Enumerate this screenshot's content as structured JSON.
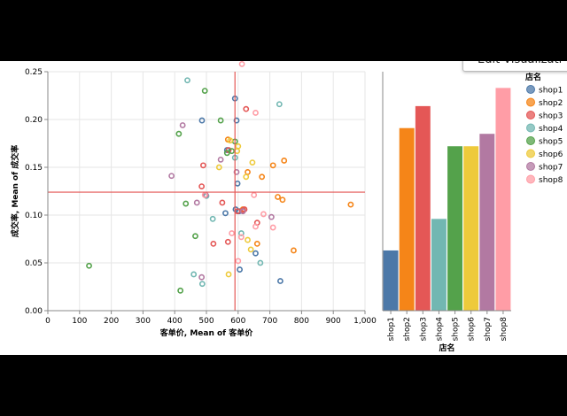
{
  "edit_button": "Edit Visualizati",
  "chart_data": [
    {
      "type": "scatter",
      "xlabel": "客单价, Mean of 客单价",
      "ylabel": "成交率, Mean of 成交率",
      "xlim": [
        0,
        1000
      ],
      "ylim": [
        0,
        0.25
      ],
      "x_ticks": [
        "0",
        "100",
        "200",
        "300",
        "400",
        "500",
        "600",
        "700",
        "800",
        "900",
        "1,000"
      ],
      "y_ticks": [
        "0.00",
        "0.05",
        "0.10",
        "0.15",
        "0.20",
        "0.25"
      ],
      "grid": true,
      "mean_lines": {
        "x": 590,
        "y": 0.124,
        "color": "#e45756"
      },
      "series": [
        {
          "name": "shop1",
          "color": "#4c78a8",
          "points": [
            [
              590,
              0.222
            ],
            [
              595,
              0.199
            ],
            [
              486,
              0.199
            ],
            [
              598,
              0.133
            ],
            [
              560,
              0.102
            ],
            [
              592,
              0.106
            ],
            [
              603,
              0.104
            ],
            [
              605,
              0.043
            ],
            [
              655,
              0.06
            ],
            [
              733,
              0.031
            ],
            [
              565,
              0.168
            ]
          ]
        },
        {
          "name": "shop2",
          "color": "#f58518",
          "points": [
            [
              745,
              0.157
            ],
            [
              675,
              0.14
            ],
            [
              710,
              0.152
            ],
            [
              615,
              0.106
            ],
            [
              630,
              0.145
            ],
            [
              725,
              0.119
            ],
            [
              740,
              0.116
            ],
            [
              660,
              0.07
            ],
            [
              775,
              0.063
            ],
            [
              955,
              0.111
            ],
            [
              568,
              0.179
            ]
          ]
        },
        {
          "name": "shop3",
          "color": "#e45756",
          "points": [
            [
              625,
              0.211
            ],
            [
              490,
              0.152
            ],
            [
              485,
              0.13
            ],
            [
              550,
              0.113
            ],
            [
              598,
              0.104
            ],
            [
              615,
              0.105
            ],
            [
              620,
              0.106
            ],
            [
              522,
              0.07
            ],
            [
              568,
              0.072
            ],
            [
              570,
              0.168
            ],
            [
              660,
              0.092
            ]
          ]
        },
        {
          "name": "shop4",
          "color": "#72b7b2",
          "points": [
            [
              440,
              0.241
            ],
            [
              730,
              0.216
            ],
            [
              500,
              0.12
            ],
            [
              520,
              0.096
            ],
            [
              670,
              0.05
            ],
            [
              460,
              0.038
            ],
            [
              487,
              0.028
            ],
            [
              610,
              0.081
            ],
            [
              590,
              0.16
            ]
          ]
        },
        {
          "name": "shop5",
          "color": "#54a24b",
          "points": [
            [
              495,
              0.23
            ],
            [
              545,
              0.199
            ],
            [
              413,
              0.185
            ],
            [
              590,
              0.177
            ],
            [
              565,
              0.165
            ],
            [
              435,
              0.112
            ],
            [
              465,
              0.078
            ],
            [
              418,
              0.021
            ],
            [
              130,
              0.047
            ],
            [
              580,
              0.167
            ]
          ]
        },
        {
          "name": "shop6",
          "color": "#eeca3b",
          "points": [
            [
              575,
              0.178
            ],
            [
              540,
              0.15
            ],
            [
              625,
              0.14
            ],
            [
              645,
              0.155
            ],
            [
              600,
              0.172
            ],
            [
              630,
              0.074
            ],
            [
              640,
              0.064
            ],
            [
              570,
              0.038
            ],
            [
              597,
              0.167
            ]
          ]
        },
        {
          "name": "shop7",
          "color": "#b279a2",
          "points": [
            [
              425,
              0.194
            ],
            [
              390,
              0.141
            ],
            [
              498,
              0.121
            ],
            [
              595,
              0.145
            ],
            [
              705,
              0.098
            ],
            [
              470,
              0.113
            ],
            [
              485,
              0.035
            ],
            [
              615,
              0.104
            ],
            [
              545,
              0.158
            ]
          ]
        },
        {
          "name": "shop8",
          "color": "#ff9da6",
          "points": [
            [
              612,
              0.258
            ],
            [
              655,
              0.207
            ],
            [
              495,
              0.121
            ],
            [
              610,
              0.077
            ],
            [
              655,
              0.088
            ],
            [
              680,
              0.101
            ],
            [
              710,
              0.087
            ],
            [
              580,
              0.081
            ],
            [
              600,
              0.052
            ],
            [
              650,
              0.121
            ]
          ]
        }
      ]
    },
    {
      "type": "bar",
      "xlabel": "店名",
      "ylabel": "",
      "ylim": [
        0,
        0.25
      ],
      "categories": [
        "shop1",
        "shop2",
        "shop3",
        "shop4",
        "shop5",
        "shop6",
        "shop7",
        "shop8"
      ],
      "values": [
        0.063,
        0.191,
        0.214,
        0.096,
        0.172,
        0.172,
        0.185,
        0.233
      ],
      "colors": [
        "#4c78a8",
        "#f58518",
        "#e45756",
        "#72b7b2",
        "#54a24b",
        "#eeca3b",
        "#b279a2",
        "#ff9da6"
      ]
    }
  ],
  "legend": {
    "title": "店名",
    "placement": "right",
    "items": [
      {
        "label": "shop1",
        "color": "#4c78a8"
      },
      {
        "label": "shop2",
        "color": "#f58518"
      },
      {
        "label": "shop3",
        "color": "#e45756"
      },
      {
        "label": "shop4",
        "color": "#72b7b2"
      },
      {
        "label": "shop5",
        "color": "#54a24b"
      },
      {
        "label": "shop6",
        "color": "#eeca3b"
      },
      {
        "label": "shop7",
        "color": "#b279a2"
      },
      {
        "label": "shop8",
        "color": "#ff9da6"
      }
    ]
  }
}
